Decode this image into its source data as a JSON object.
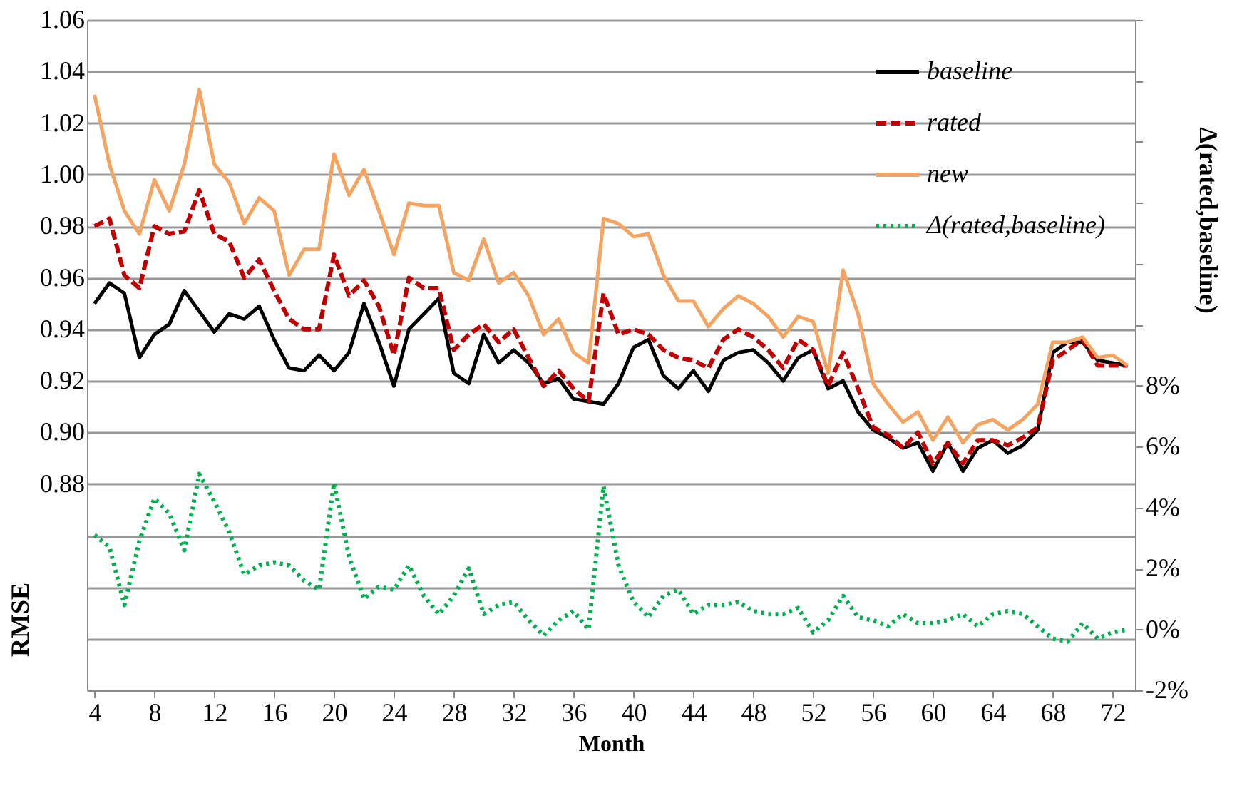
{
  "chart_data": {
    "type": "line",
    "xlabel": "Month",
    "ylabel": "RMSE",
    "y2label": "Δ(rated,baseline)",
    "x": [
      4,
      5,
      6,
      7,
      8,
      9,
      10,
      11,
      12,
      13,
      14,
      15,
      16,
      17,
      18,
      19,
      20,
      21,
      22,
      23,
      24,
      25,
      26,
      27,
      28,
      29,
      30,
      31,
      32,
      33,
      34,
      35,
      36,
      37,
      38,
      39,
      40,
      41,
      42,
      43,
      44,
      45,
      46,
      47,
      48,
      49,
      50,
      51,
      52,
      53,
      54,
      55,
      56,
      57,
      58,
      59,
      60,
      61,
      62,
      63,
      64,
      65,
      66,
      67,
      68,
      69,
      70,
      71,
      72,
      73
    ],
    "series": [
      {
        "name": "baseline",
        "color": "#000000",
        "line_style": "solid",
        "values": [
          0.95,
          0.958,
          0.954,
          0.929,
          0.938,
          0.942,
          0.955,
          0.947,
          0.939,
          0.946,
          0.944,
          0.949,
          0.936,
          0.925,
          0.924,
          0.93,
          0.924,
          0.931,
          0.95,
          0.935,
          0.918,
          0.94,
          0.946,
          0.952,
          0.923,
          0.919,
          0.938,
          0.927,
          0.932,
          0.927,
          0.919,
          0.921,
          0.913,
          0.912,
          0.911,
          0.919,
          0.933,
          0.936,
          0.922,
          0.917,
          0.924,
          0.916,
          0.928,
          0.931,
          0.932,
          0.927,
          0.92,
          0.929,
          0.932,
          0.917,
          0.92,
          0.908,
          0.901,
          0.898,
          0.894,
          0.896,
          0.885,
          0.896,
          0.885,
          0.894,
          0.897,
          0.892,
          0.895,
          0.901,
          0.931,
          0.935,
          0.935,
          0.928,
          0.927,
          0.926
        ]
      },
      {
        "name": "rated",
        "color": "#c00000",
        "line_style": "dashed",
        "values": [
          0.98,
          0.983,
          0.961,
          0.956,
          0.98,
          0.977,
          0.978,
          0.994,
          0.977,
          0.974,
          0.96,
          0.967,
          0.955,
          0.944,
          0.94,
          0.94,
          0.969,
          0.953,
          0.959,
          0.949,
          0.93,
          0.96,
          0.956,
          0.956,
          0.932,
          0.938,
          0.942,
          0.935,
          0.94,
          0.929,
          0.918,
          0.924,
          0.917,
          0.912,
          0.954,
          0.938,
          0.94,
          0.938,
          0.932,
          0.929,
          0.928,
          0.925,
          0.936,
          0.94,
          0.937,
          0.932,
          0.925,
          0.936,
          0.932,
          0.918,
          0.931,
          0.917,
          0.902,
          0.899,
          0.894,
          0.9,
          0.888,
          0.896,
          0.888,
          0.897,
          0.897,
          0.895,
          0.898,
          0.902,
          0.928,
          0.932,
          0.936,
          0.926,
          0.926,
          0.926
        ]
      },
      {
        "name": "new",
        "color": "#f4a460",
        "line_style": "solid",
        "values": [
          1.031,
          1.004,
          0.986,
          0.977,
          0.998,
          0.986,
          1.004,
          1.033,
          1.004,
          0.997,
          0.981,
          0.991,
          0.986,
          0.961,
          0.971,
          0.971,
          1.008,
          0.992,
          1.002,
          0.986,
          0.969,
          0.989,
          0.988,
          0.988,
          0.962,
          0.959,
          0.975,
          0.958,
          0.962,
          0.953,
          0.938,
          0.944,
          0.931,
          0.927,
          0.983,
          0.981,
          0.976,
          0.977,
          0.961,
          0.951,
          0.951,
          0.941,
          0.948,
          0.953,
          0.95,
          0.945,
          0.937,
          0.945,
          0.943,
          0.923,
          0.963,
          0.946,
          0.919,
          0.911,
          0.904,
          0.908,
          0.897,
          0.906,
          0.896,
          0.903,
          0.905,
          0.901,
          0.905,
          0.911,
          0.935,
          0.935,
          0.937,
          0.929,
          0.93,
          0.926
        ]
      },
      {
        "name": "Δ(rated,baseline)",
        "color": "#00b050",
        "line_style": "dotted",
        "axis": "y2",
        "values": [
          3.1,
          2.7,
          0.8,
          2.9,
          4.3,
          3.8,
          2.6,
          5.1,
          4.2,
          3.2,
          1.8,
          2.1,
          2.2,
          2.1,
          1.6,
          1.3,
          4.8,
          2.4,
          1.0,
          1.4,
          1.3,
          2.1,
          1.1,
          0.5,
          1.1,
          2.0,
          0.5,
          0.8,
          0.9,
          0.3,
          -0.2,
          0.3,
          0.6,
          0.0,
          4.7,
          2.1,
          0.9,
          0.4,
          1.1,
          1.3,
          0.5,
          0.8,
          0.8,
          0.9,
          0.6,
          0.5,
          0.5,
          0.7,
          -0.1,
          0.3,
          1.1,
          0.4,
          0.3,
          0.1,
          0.5,
          0.2,
          0.2,
          0.3,
          0.5,
          0.1,
          0.5,
          0.6,
          0.5,
          0.1,
          -0.3,
          -0.4,
          0.2,
          -0.3,
          -0.1,
          0.0
        ]
      }
    ],
    "xlim": [
      3.5,
      73.5
    ],
    "xticks": [
      4,
      8,
      12,
      16,
      20,
      24,
      28,
      32,
      36,
      40,
      44,
      48,
      52,
      56,
      60,
      64,
      68,
      72
    ],
    "ylim": [
      0.8,
      1.06
    ],
    "yticks": [
      {
        "value": 0.8,
        "label": null
      },
      {
        "value": 0.82,
        "label": null
      },
      {
        "value": 0.84,
        "label": null
      },
      {
        "value": 0.86,
        "label": null
      },
      {
        "value": 0.88,
        "label": "0.88"
      },
      {
        "value": 0.9,
        "label": "0.90"
      },
      {
        "value": 0.92,
        "label": "0.92"
      },
      {
        "value": 0.94,
        "label": "0.94"
      },
      {
        "value": 0.96,
        "label": "0.96"
      },
      {
        "value": 0.98,
        "label": "0.98"
      },
      {
        "value": 1.0,
        "label": "1.00"
      },
      {
        "value": 1.02,
        "label": "1.02"
      },
      {
        "value": 1.04,
        "label": "1.04"
      },
      {
        "value": 1.06,
        "label": "1.06"
      }
    ],
    "y2lim": [
      -2,
      20
    ],
    "y2ticks": [
      {
        "value": -2,
        "label": "-2%"
      },
      {
        "value": 0,
        "label": "0%"
      },
      {
        "value": 2,
        "label": "2%"
      },
      {
        "value": 4,
        "label": "4%"
      },
      {
        "value": 6,
        "label": "6%"
      },
      {
        "value": 8,
        "label": "8%"
      },
      {
        "value": 10,
        "label": null
      },
      {
        "value": 12,
        "label": null
      },
      {
        "value": 14,
        "label": null
      },
      {
        "value": 16,
        "label": null
      },
      {
        "value": 18,
        "label": null
      },
      {
        "value": 20,
        "label": null
      }
    ],
    "grid": "y",
    "legend": "top right",
    "marker": "none"
  }
}
